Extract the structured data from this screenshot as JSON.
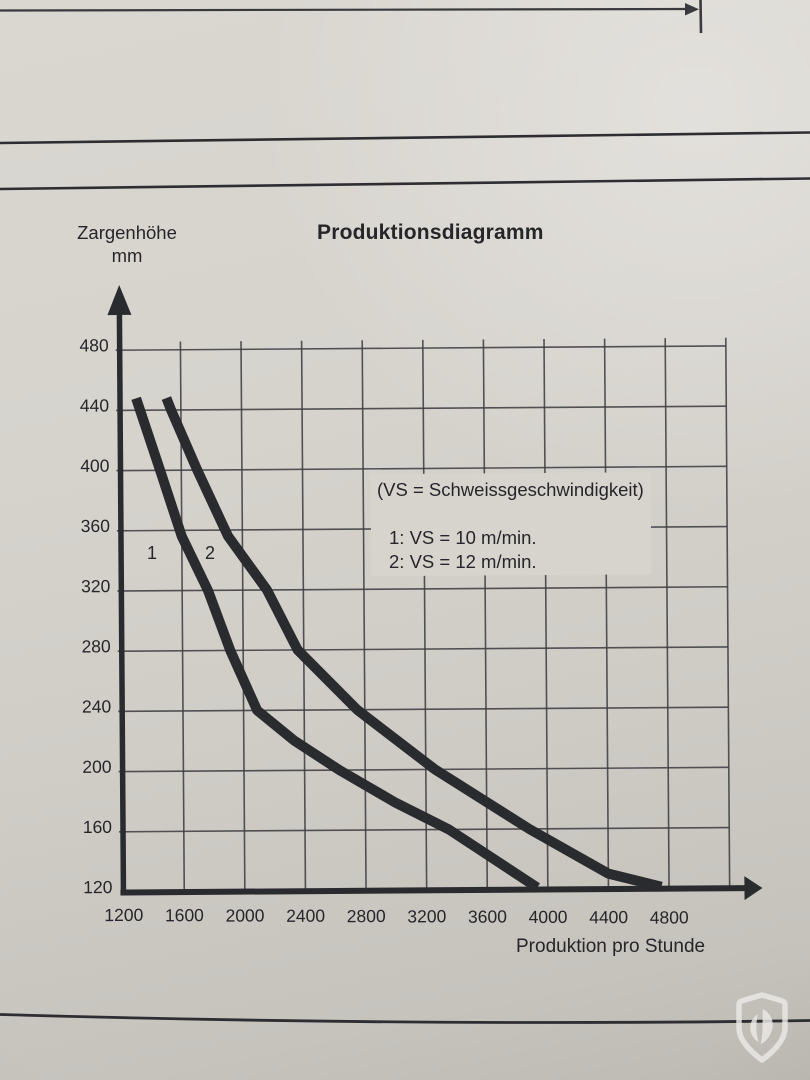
{
  "page_title": "Produktionsdiagramm",
  "watermark_icon": "shield-tulip-logo",
  "chart_data": {
    "type": "line",
    "title": "Produktionsdiagramm",
    "y_axis_label_line1": "Zargenhöhe",
    "y_axis_label_line2": "mm",
    "x_axis_label": "Produktion pro Stunde",
    "x_ticks": [
      "1200",
      "1600",
      "2000",
      "2400",
      "2800",
      "3200",
      "3600",
      "4000",
      "4400",
      "4800"
    ],
    "y_ticks": [
      "480",
      "440",
      "400",
      "360",
      "320",
      "280",
      "240",
      "200",
      "160",
      "120"
    ],
    "x_range_grid": [
      1200,
      5200
    ],
    "y_range_grid": [
      120,
      480
    ],
    "grid_step_x": 400,
    "grid_step_y": 40,
    "grid": true,
    "legend_note": "(VS = Schweissgeschwindigkeit)",
    "legend_entries": [
      "1: VS = 10 m/min.",
      "2: VS = 12 m/min."
    ],
    "legend_position": "inside-upper-right",
    "ink_color": "#2a2b2f",
    "series": [
      {
        "name": "1",
        "vs": "VS = 10 m/min.",
        "points": [
          [
            1305,
            448
          ],
          [
            1460,
            400
          ],
          [
            1600,
            356
          ],
          [
            1770,
            320
          ],
          [
            1915,
            280
          ],
          [
            2090,
            240
          ],
          [
            2330,
            220
          ],
          [
            2630,
            200
          ],
          [
            3000,
            178
          ],
          [
            3350,
            160
          ],
          [
            3930,
            121
          ]
        ]
      },
      {
        "name": "2",
        "vs": "VS = 12 m/min.",
        "points": [
          [
            1505,
            448
          ],
          [
            1535,
            440
          ],
          [
            1705,
            400
          ],
          [
            1905,
            356
          ],
          [
            2160,
            320
          ],
          [
            2360,
            280
          ],
          [
            2750,
            240
          ],
          [
            3260,
            200
          ],
          [
            3880,
            160
          ],
          [
            4400,
            130
          ],
          [
            4750,
            121
          ]
        ]
      }
    ]
  }
}
